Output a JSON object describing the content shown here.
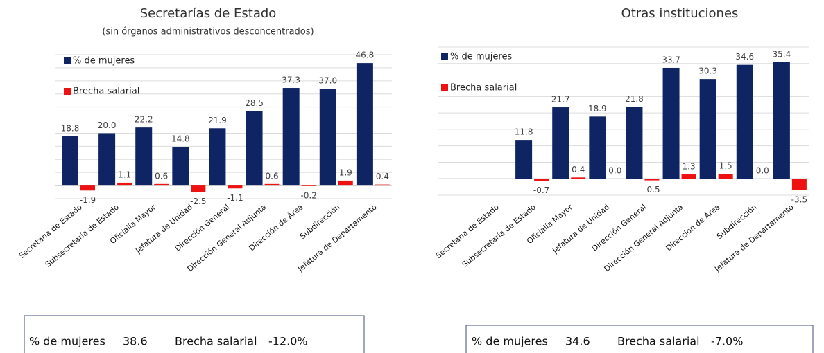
{
  "chart_data": [
    {
      "type": "bar",
      "title": "Secretarías de Estado",
      "subtitle": "(sin órganos administrativos desconcentrados)",
      "categories": [
        "Secretaría de Estado",
        "Subsecretaría de Estado",
        "Oficialía Mayor",
        "Jefatura de Unidad",
        "Dirección General",
        "Dirección General Adjunta",
        "Dirección de Área",
        "Subdirección",
        "Jefatura de Departamento"
      ],
      "series": [
        {
          "name": "% de mujeres",
          "color": "#0f2463",
          "values": [
            18.8,
            20.0,
            22.2,
            14.8,
            21.9,
            28.5,
            37.3,
            37.0,
            46.8
          ],
          "value_labels": [
            "18.8",
            "20.0",
            "22.2",
            "14.8",
            "21.9",
            "28.5",
            "37.3",
            "37.0",
            "46.8"
          ]
        },
        {
          "name": "Brecha salarial",
          "color": "#ee1111",
          "values": [
            -1.9,
            1.1,
            0.6,
            -2.5,
            -1.1,
            0.6,
            -0.2,
            1.9,
            0.4
          ],
          "value_labels": [
            "-1.9",
            "1.1",
            "0.6",
            "-2.5",
            "-1.1",
            "0.6",
            "-0.2",
            "1.9",
            "0.4"
          ]
        }
      ],
      "ylim": [
        -5,
        50
      ],
      "yticks": [
        -5,
        0,
        5,
        10,
        15,
        20,
        25,
        30,
        35,
        40,
        45,
        50
      ],
      "grid": true,
      "summary": {
        "women_label": "% de mujeres",
        "women_value": "38.6",
        "gap_label": "Brecha salarial",
        "gap_value": "-12.0%"
      }
    },
    {
      "type": "bar",
      "title": "Otras instituciones",
      "categories": [
        "Secretaría de Estado",
        "Subsecretaría de Estado",
        "Oficialía Mayor",
        "Jefatura de Unidad",
        "Dirección General",
        "Dirección General Adjunta",
        "Dirección de Área",
        "Subdirección",
        "Jefatura de Departamento"
      ],
      "series": [
        {
          "name": "% de mujeres",
          "color": "#0f2463",
          "values": [
            null,
            11.8,
            21.7,
            18.9,
            21.8,
            33.7,
            30.3,
            34.6,
            35.4
          ],
          "value_labels": [
            null,
            "11.8",
            "21.7",
            "18.9",
            "21.8",
            "33.7",
            "30.3",
            "34.6",
            "35.4"
          ]
        },
        {
          "name": "Brecha salarial",
          "color": "#ee1111",
          "values": [
            null,
            -0.7,
            0.4,
            0.0,
            -0.5,
            1.3,
            1.5,
            0.0,
            -3.5
          ],
          "value_labels": [
            null,
            "-0.7",
            "0.4",
            "0.0",
            "-0.5",
            "1.3",
            "1.5",
            "0.0",
            "-3.5"
          ]
        }
      ],
      "ylim": [
        -5,
        40
      ],
      "yticks": [
        -5,
        0,
        5,
        10,
        15,
        20,
        25,
        30,
        35,
        40
      ],
      "grid": true,
      "summary": {
        "women_label": "% de mujeres",
        "women_value": "34.6",
        "gap_label": "Brecha salarial",
        "gap_value": "-7.0%"
      }
    }
  ]
}
